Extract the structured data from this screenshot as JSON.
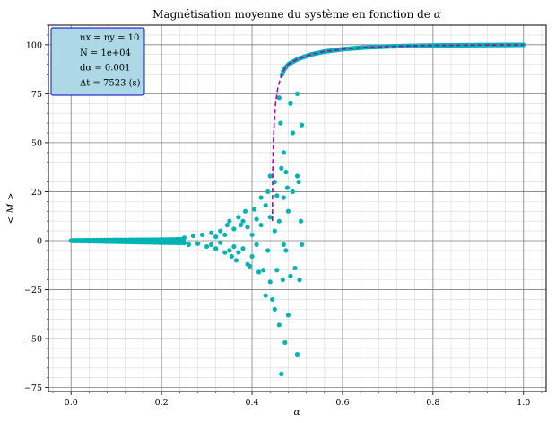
{
  "chart_data": {
    "type": "scatter",
    "title": "Magnétisation moyenne du système en fonction de α",
    "xlabel": "α",
    "ylabel": "< M >",
    "xlim": [
      -0.05,
      1.05
    ],
    "ylim": [
      -77,
      110
    ],
    "xticks": [
      0.0,
      0.2,
      0.4,
      0.6,
      0.8,
      1.0
    ],
    "xtick_labels": [
      "0.0",
      "0.2",
      "0.4",
      "0.6",
      "0.8",
      "1.0"
    ],
    "yticks": [
      -75,
      -50,
      -25,
      0,
      25,
      50,
      75,
      100
    ],
    "ytick_labels": [
      "−75",
      "−50",
      "−25",
      "0",
      "25",
      "50",
      "75",
      "100"
    ],
    "grid": true,
    "minor_grid": true,
    "legend_box": {
      "placement": "top-left",
      "lines": [
        "nx = ny = 10",
        "N = 1e+04",
        "dα = 0.001",
        "Δt = 7523 (s)"
      ],
      "face_color": "#add8e6",
      "edge_color": "#0000cd"
    },
    "series": [
      {
        "kind": "scatter",
        "color": "#00b3b3",
        "points": [
          [
            0.25,
            1.5
          ],
          [
            0.26,
            -2
          ],
          [
            0.27,
            2.5
          ],
          [
            0.28,
            -1.5
          ],
          [
            0.29,
            3
          ],
          [
            0.3,
            -3
          ],
          [
            0.31,
            4
          ],
          [
            0.31,
            -2
          ],
          [
            0.32,
            2
          ],
          [
            0.32,
            -4
          ],
          [
            0.33,
            5
          ],
          [
            0.33,
            -1
          ],
          [
            0.34,
            -6
          ],
          [
            0.34,
            3
          ],
          [
            0.345,
            8
          ],
          [
            0.35,
            -5
          ],
          [
            0.35,
            10
          ],
          [
            0.355,
            -8
          ],
          [
            0.36,
            6
          ],
          [
            0.36,
            -3
          ],
          [
            0.365,
            -10
          ],
          [
            0.37,
            12
          ],
          [
            0.37,
            -6
          ],
          [
            0.375,
            8
          ],
          [
            0.38,
            -4
          ],
          [
            0.38,
            10
          ],
          [
            0.385,
            15
          ],
          [
            0.39,
            -12
          ],
          [
            0.39,
            7
          ],
          [
            0.395,
            -13
          ],
          [
            0.4,
            3
          ],
          [
            0.4,
            -8
          ],
          [
            0.405,
            16
          ],
          [
            0.41,
            11
          ],
          [
            0.41,
            -2
          ],
          [
            0.415,
            -16
          ],
          [
            0.42,
            22
          ],
          [
            0.42,
            8
          ],
          [
            0.425,
            -15
          ],
          [
            0.43,
            18
          ],
          [
            0.43,
            -28
          ],
          [
            0.435,
            25
          ],
          [
            0.435,
            -5
          ],
          [
            0.44,
            33
          ],
          [
            0.44,
            12
          ],
          [
            0.44,
            -21
          ],
          [
            0.445,
            -30
          ],
          [
            0.45,
            30
          ],
          [
            0.45,
            -35
          ],
          [
            0.45,
            5
          ],
          [
            0.455,
            23
          ],
          [
            0.455,
            -15
          ],
          [
            0.46,
            73
          ],
          [
            0.46,
            -43
          ],
          [
            0.46,
            10
          ],
          [
            0.463,
            60
          ],
          [
            0.465,
            37
          ],
          [
            0.465,
            -68
          ],
          [
            0.468,
            -20
          ],
          [
            0.47,
            45
          ],
          [
            0.47,
            22
          ],
          [
            0.47,
            -2
          ],
          [
            0.473,
            -52
          ],
          [
            0.475,
            35
          ],
          [
            0.475,
            -5
          ],
          [
            0.478,
            27
          ],
          [
            0.48,
            15
          ],
          [
            0.48,
            -38
          ],
          [
            0.485,
            70
          ],
          [
            0.485,
            -18
          ],
          [
            0.49,
            55
          ],
          [
            0.49,
            25
          ],
          [
            0.495,
            -14
          ],
          [
            0.5,
            33
          ],
          [
            0.5,
            -58
          ],
          [
            0.5,
            75
          ],
          [
            0.503,
            30
          ],
          [
            0.505,
            -20
          ],
          [
            0.508,
            10
          ],
          [
            0.51,
            59
          ],
          [
            0.51,
            -2
          ]
        ]
      },
      {
        "kind": "line",
        "style": "dashed",
        "color": "#b000b0",
        "points": [
          [
            0.445,
            10
          ],
          [
            0.4452,
            20
          ],
          [
            0.4455,
            30
          ],
          [
            0.446,
            40
          ],
          [
            0.447,
            50
          ],
          [
            0.449,
            60
          ],
          [
            0.452,
            70
          ],
          [
            0.457,
            78
          ],
          [
            0.463,
            83
          ],
          [
            0.47,
            87
          ],
          [
            0.48,
            90
          ],
          [
            0.5,
            92.6
          ],
          [
            0.53,
            95
          ],
          [
            0.56,
            96.5
          ],
          [
            0.6,
            97.7
          ],
          [
            0.65,
            98.6
          ],
          [
            0.7,
            99.1
          ],
          [
            0.75,
            99.4
          ],
          [
            0.8,
            99.6
          ],
          [
            0.85,
            99.7
          ],
          [
            0.9,
            99.8
          ],
          [
            0.95,
            99.85
          ],
          [
            1.0,
            99.9
          ]
        ]
      }
    ]
  }
}
